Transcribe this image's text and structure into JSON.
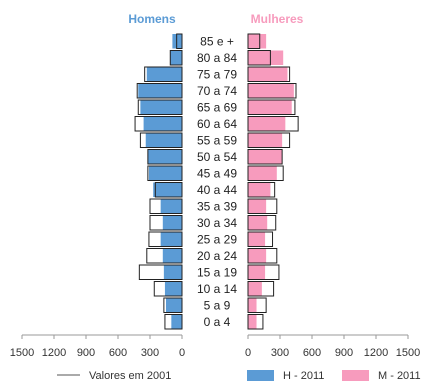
{
  "chart_data": {
    "type": "bar",
    "title": "",
    "xlabel": "",
    "ylabel": "",
    "categories": [
      "85 e +",
      "80 a 84",
      "75 a 79",
      "70 a 74",
      "65 a 69",
      "60 a 64",
      "55 a 59",
      "50 a 54",
      "45 a 49",
      "40 a 44",
      "35 a 39",
      "30 a 34",
      "25 a 29",
      "20 a 24",
      "15 a 19",
      "10 a 14",
      "5 a 9",
      "0 a 4"
    ],
    "panels": {
      "left": {
        "title": "Homens",
        "color": "#5b9bd5"
      },
      "right": {
        "title": "Mulheres",
        "color": "#f79bbd"
      }
    },
    "xlim": [
      0,
      1500
    ],
    "ticks": [
      "0",
      "300",
      "600",
      "900",
      "1200",
      "1500"
    ],
    "ticks_left": [
      "1500",
      "1200",
      "900",
      "600",
      "300",
      "0"
    ],
    "series": [
      {
        "name": "H - 2011",
        "side": "left",
        "kind": "bar",
        "color": "#5b9bd5",
        "values": [
          90,
          110,
          330,
          410,
          390,
          360,
          340,
          320,
          310,
          270,
          200,
          180,
          200,
          180,
          170,
          160,
          150,
          100
        ]
      },
      {
        "name": "M - 2011",
        "side": "right",
        "kind": "bar",
        "color": "#f79bbd",
        "values": [
          170,
          330,
          370,
          430,
          410,
          350,
          320,
          320,
          270,
          210,
          170,
          180,
          160,
          170,
          160,
          130,
          80,
          80
        ]
      },
      {
        "name": "Valores em 2001",
        "side": "left",
        "kind": "outline",
        "values": [
          50,
          110,
          350,
          420,
          410,
          440,
          390,
          320,
          320,
          250,
          300,
          300,
          310,
          330,
          400,
          260,
          170,
          160
        ]
      },
      {
        "name": "Valores em 2001",
        "side": "right",
        "kind": "outline",
        "values": [
          110,
          210,
          390,
          450,
          440,
          470,
          390,
          320,
          330,
          250,
          270,
          260,
          230,
          270,
          290,
          240,
          170,
          140
        ]
      }
    ],
    "legend": {
      "placement": "bottom",
      "outline_label": "Valores em 2001",
      "items": [
        {
          "label": "H - 2011",
          "color": "#5b9bd5"
        },
        {
          "label": "M - 2011",
          "color": "#f79bbd"
        }
      ]
    }
  }
}
